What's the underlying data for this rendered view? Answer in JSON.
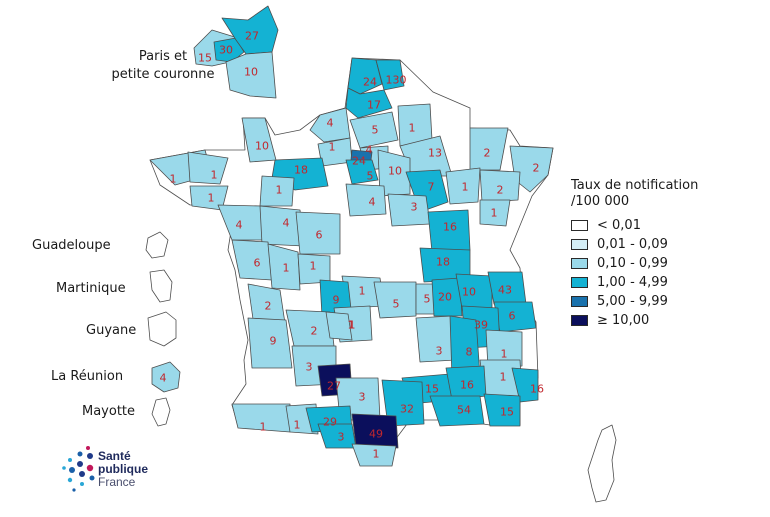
{
  "inset": {
    "title_line1": "Paris et",
    "title_line2": "petite couronne",
    "values": [
      "15",
      "30",
      "27",
      "10"
    ]
  },
  "overseas": [
    {
      "name": "Guadeloupe",
      "value": ""
    },
    {
      "name": "Martinique",
      "value": ""
    },
    {
      "name": "Guyane",
      "value": ""
    },
    {
      "name": "La Réunion",
      "value": "4"
    },
    {
      "name": "Mayotte",
      "value": ""
    }
  ],
  "legend": {
    "title_line1": "Taux de notification",
    "title_line2": "/100 000",
    "classes": [
      {
        "label": "< 0,01",
        "color": "#ffffff"
      },
      {
        "label": "0,01 - 0,09",
        "color": "#d4eef6"
      },
      {
        "label": "0,10 - 0,99",
        "color": "#9ad9ea"
      },
      {
        "label": "1,00 - 4,99",
        "color": "#14b2d3"
      },
      {
        "label": "5,00 - 9,99",
        "color": "#1a72ad"
      },
      {
        "label": "≥ 10,00",
        "color": "#0b0f5c"
      }
    ]
  },
  "department_values": [
    {
      "value": "24",
      "class": 3
    },
    {
      "value": "130",
      "class": 3
    },
    {
      "value": "17",
      "class": 3
    },
    {
      "value": "4",
      "class": 2
    },
    {
      "value": "5",
      "class": 2
    },
    {
      "value": "1",
      "class": 2
    },
    {
      "value": "1",
      "class": 2
    },
    {
      "value": "4",
      "class": 2
    },
    {
      "value": "24",
      "class": 4
    },
    {
      "value": "13",
      "class": 2
    },
    {
      "value": "2",
      "class": 2
    },
    {
      "value": "2",
      "class": 2
    },
    {
      "value": "18",
      "class": 3
    },
    {
      "value": "5",
      "class": 3
    },
    {
      "value": "10",
      "class": 2
    },
    {
      "value": "10",
      "class": 2
    },
    {
      "value": "1",
      "class": 2
    },
    {
      "value": "1",
      "class": 2
    },
    {
      "value": "1",
      "class": 2
    },
    {
      "value": "4",
      "class": 2
    },
    {
      "value": "1",
      "class": 2
    },
    {
      "value": "7",
      "class": 3
    },
    {
      "value": "1",
      "class": 2
    },
    {
      "value": "2",
      "class": 2
    },
    {
      "value": "4",
      "class": 2
    },
    {
      "value": "3",
      "class": 2
    },
    {
      "value": "1",
      "class": 2
    },
    {
      "value": "4",
      "class": 2
    },
    {
      "value": "6",
      "class": 2
    },
    {
      "value": "6",
      "class": 2
    },
    {
      "value": "16",
      "class": 3
    },
    {
      "value": "1",
      "class": 2
    },
    {
      "value": "1",
      "class": 2
    },
    {
      "value": "2",
      "class": 2
    },
    {
      "value": "18",
      "class": 3
    },
    {
      "value": "1",
      "class": 2
    },
    {
      "value": "9",
      "class": 3
    },
    {
      "value": "1",
      "class": 2
    },
    {
      "value": "5",
      "class": 2
    },
    {
      "value": "5",
      "class": 2
    },
    {
      "value": "20",
      "class": 3
    },
    {
      "value": "10",
      "class": 3
    },
    {
      "value": "43",
      "class": 3
    },
    {
      "value": "6",
      "class": 3
    },
    {
      "value": "2",
      "class": 2
    },
    {
      "value": "1",
      "class": 2
    },
    {
      "value": "39",
      "class": 3
    },
    {
      "value": "9",
      "class": 2
    },
    {
      "value": "3",
      "class": 2
    },
    {
      "value": "8",
      "class": 3
    },
    {
      "value": "1",
      "class": 2
    },
    {
      "value": "3",
      "class": 2
    },
    {
      "value": "1",
      "class": 2
    },
    {
      "value": "27",
      "class": 5
    },
    {
      "value": "15",
      "class": 3
    },
    {
      "value": "16",
      "class": 3
    },
    {
      "value": "16",
      "class": 3
    },
    {
      "value": "3",
      "class": 2
    },
    {
      "value": "32",
      "class": 3
    },
    {
      "value": "54",
      "class": 3
    },
    {
      "value": "15",
      "class": 3
    },
    {
      "value": "1",
      "class": 2
    },
    {
      "value": "1",
      "class": 2
    },
    {
      "value": "29",
      "class": 3
    },
    {
      "value": "3",
      "class": 3
    },
    {
      "value": "49",
      "class": 5
    },
    {
      "value": "1",
      "class": 2
    }
  ],
  "logo": {
    "line1": "Santé",
    "line2": "publique",
    "line3": "France"
  }
}
